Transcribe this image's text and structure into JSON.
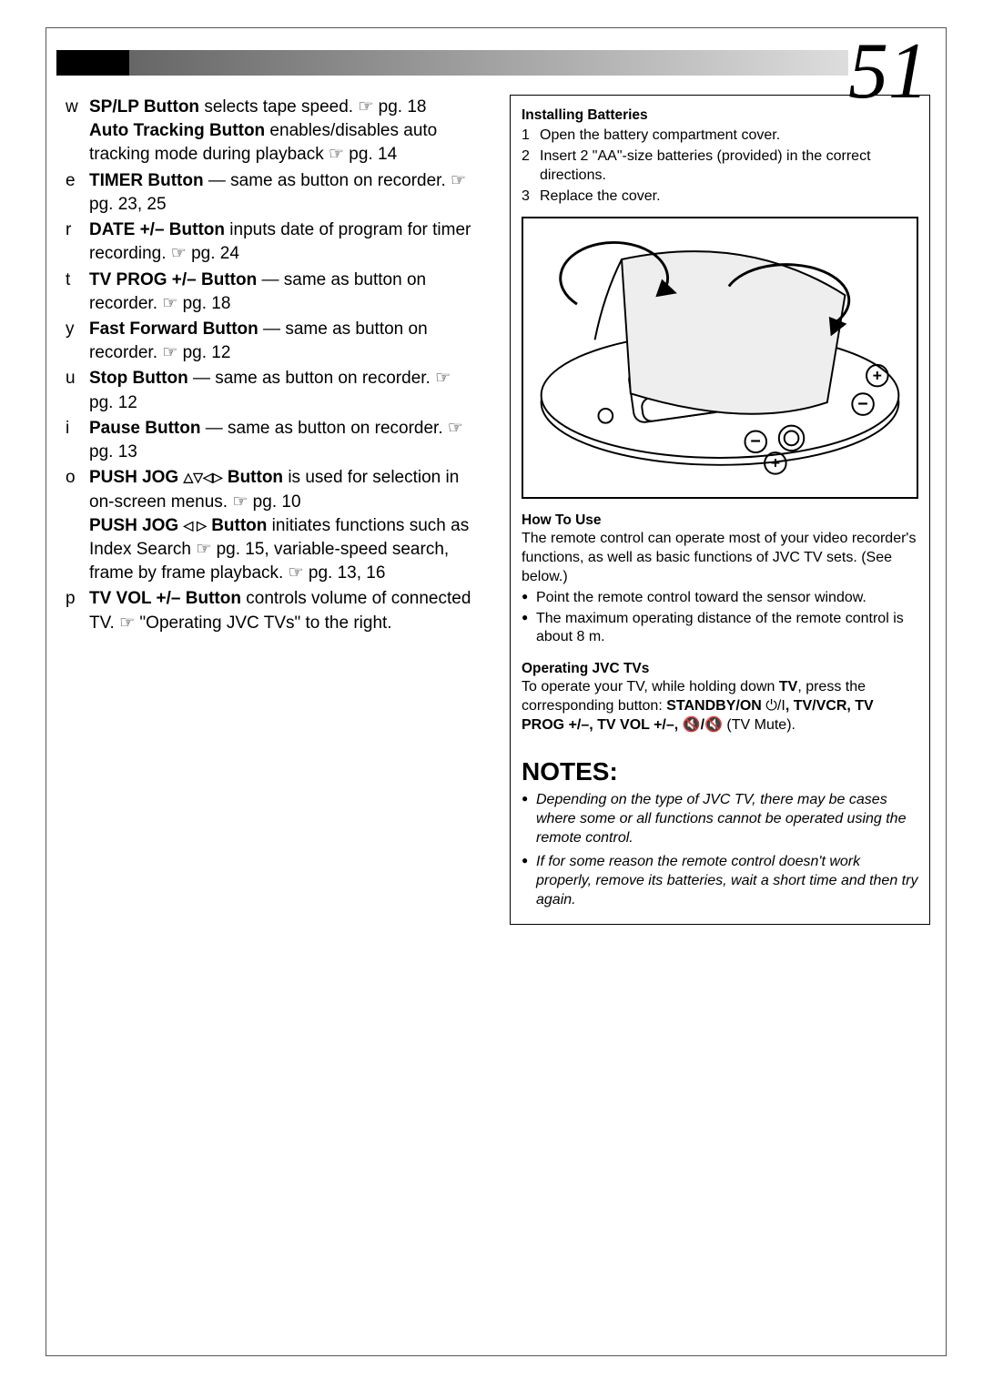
{
  "pageNumber": "51",
  "leftColumn": {
    "items": [
      {
        "marker": "w",
        "html": "<span class='b'>SP/LP Button</span> selects tape speed. <span class='ptr'>☞</span> pg. 18<br><span class='b'>Auto Tracking Button</span> enables/disables auto tracking mode during playback <span class='ptr'>☞</span> pg. 14"
      },
      {
        "marker": "e",
        "html": "<span class='b'>TIMER Button</span> — same as button on recorder. <span class='ptr'>☞</span> pg. 23, 25"
      },
      {
        "marker": "r",
        "html": "<span class='b'>DATE +/– Button</span> inputs date of program for timer recording. <span class='ptr'>☞</span> pg. 24"
      },
      {
        "marker": "t",
        "html": "<span class='b'>TV PROG +/– Button</span> — same as button on recorder. <span class='ptr'>☞</span> pg. 18"
      },
      {
        "marker": "y",
        "html": "<span class='b'>Fast Forward Button</span> — same as button on recorder. <span class='ptr'>☞</span> pg. 12"
      },
      {
        "marker": "u",
        "html": "<span class='b'>Stop Button</span> — same as button on recorder. <span class='ptr'>☞</span> pg. 12"
      },
      {
        "marker": "i",
        "html": "<span class='b'>Pause Button</span> — same as button on recorder. <span class='ptr'>☞</span> pg. 13"
      },
      {
        "marker": "o",
        "html": "<span class='b'>PUSH JOG <span class='tri'>△▽◁▷</span> Button</span> is used for selection in on-screen menus. <span class='ptr'>☞</span> pg. 10<br><span class='b'>PUSH JOG <span class='tri'>◁ ▷</span> Button</span> initiates functions such as Index Search <span class='ptr'>☞</span> pg. 15, variable-speed search, frame by frame playback. <span class='ptr'>☞</span> pg. 13, 16"
      },
      {
        "marker": "p",
        "html": "<span class='b'>TV VOL +/– Button</span> controls volume of connected TV. <span class='ptr'>☞</span> \"Operating JVC TVs\" to the right."
      }
    ]
  },
  "rightColumn": {
    "installing": {
      "heading": "Installing Batteries",
      "steps": [
        "Open the battery compartment cover.",
        "Insert 2 \"AA\"-size batteries (provided) in the correct directions.",
        "Replace the cover."
      ]
    },
    "howto": {
      "heading": "How To Use",
      "intro": "The remote control can operate most of your video recorder's functions, as well as basic functions of JVC TV sets. (See below.)",
      "bullets": [
        "Point the remote control toward the sensor window.",
        "The maximum operating distance of the remote control is about 8 m."
      ]
    },
    "operating": {
      "heading": "Operating JVC TVs",
      "textHtml": "To operate your TV, while holding down <span class='b'>TV</span>, press the corresponding button: <span class='b'>STANDBY/ON</span> ⏻/I<span class='b'>, TV/VCR, TV PROG +/–, TV VOL +/–, 🔇/🔇</span> (TV Mute)."
    },
    "notes": {
      "heading": "NOTES:",
      "items": [
        "Depending on the type of JVC TV, there may be cases where some or all functions cannot be operated using the remote control.",
        "If for some reason the remote control doesn't work properly, remove its batteries, wait a short time and then try again."
      ]
    }
  }
}
